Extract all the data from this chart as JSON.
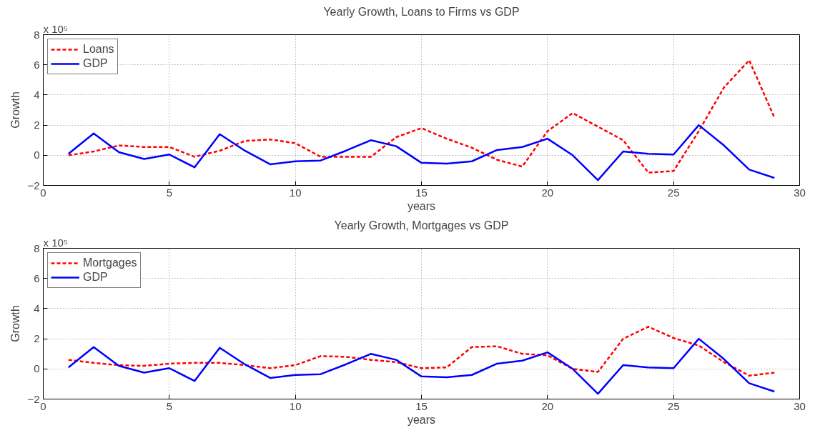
{
  "chart_data": [
    {
      "type": "line",
      "title": "Yearly Growth, Loans to Firms vs GDP",
      "xlabel": "years",
      "ylabel": "Growth",
      "annotations": [
        "x 10⁵"
      ],
      "x": [
        1,
        2,
        3,
        4,
        5,
        6,
        7,
        8,
        9,
        10,
        11,
        12,
        13,
        14,
        15,
        16,
        17,
        18,
        19,
        20,
        21,
        22,
        23,
        24,
        25,
        26,
        27,
        28,
        29
      ],
      "series": [
        {
          "name": "Loans",
          "color": "#ff0000",
          "line_style": "dashed",
          "values": [
            0,
            0.25,
            0.65,
            0.55,
            0.55,
            -0.1,
            0.3,
            0.95,
            1.05,
            0.8,
            -0.1,
            -0.1,
            -0.1,
            1.2,
            1.8,
            1.1,
            0.5,
            -0.3,
            -0.75,
            1.6,
            2.8,
            1.9,
            1.0,
            -1.15,
            -1.05,
            1.6,
            4.5,
            6.3,
            2.5
          ]
        },
        {
          "name": "GDP",
          "color": "#0000ff",
          "line_style": "solid",
          "values": [
            0.1,
            1.45,
            0.2,
            -0.25,
            0.05,
            -0.8,
            1.4,
            0.3,
            -0.6,
            -0.4,
            -0.35,
            0.3,
            1.0,
            0.6,
            -0.5,
            -0.55,
            -0.4,
            0.35,
            0.55,
            1.1,
            0,
            -1.65,
            0.25,
            0.1,
            0.05,
            2.0,
            0.65,
            -0.95,
            -1.5
          ]
        }
      ],
      "xlim": [
        0,
        30
      ],
      "xticks": [
        0,
        5,
        10,
        15,
        20,
        25,
        30
      ],
      "ylim": [
        -2,
        8
      ],
      "yticks": [
        -2,
        0,
        2,
        4,
        6,
        8
      ],
      "grid": true,
      "legend": "top left"
    },
    {
      "type": "line",
      "title": "Yearly Growth, Mortgages vs GDP",
      "xlabel": "years",
      "ylabel": "Growth",
      "annotations": [
        "x 10⁵"
      ],
      "x": [
        1,
        2,
        3,
        4,
        5,
        6,
        7,
        8,
        9,
        10,
        11,
        12,
        13,
        14,
        15,
        16,
        17,
        18,
        19,
        20,
        21,
        22,
        23,
        24,
        25,
        26,
        27,
        28,
        29
      ],
      "series": [
        {
          "name": "Mortgages",
          "color": "#ff0000",
          "line_style": "dashed",
          "values": [
            0.6,
            0.4,
            0.25,
            0.2,
            0.35,
            0.4,
            0.4,
            0.25,
            0.05,
            0.25,
            0.85,
            0.8,
            0.6,
            0.45,
            0.05,
            0.1,
            1.45,
            1.5,
            1.0,
            0.9,
            0,
            -0.2,
            2.0,
            2.8,
            2.05,
            1.55,
            0.45,
            -0.45,
            -0.25
          ]
        },
        {
          "name": "GDP",
          "color": "#0000ff",
          "line_style": "solid",
          "values": [
            0.1,
            1.45,
            0.2,
            -0.25,
            0.05,
            -0.8,
            1.4,
            0.3,
            -0.6,
            -0.4,
            -0.35,
            0.3,
            1.0,
            0.6,
            -0.5,
            -0.55,
            -0.4,
            0.35,
            0.55,
            1.1,
            0,
            -1.65,
            0.25,
            0.1,
            0.05,
            2.0,
            0.65,
            -0.95,
            -1.5
          ]
        }
      ],
      "xlim": [
        0,
        30
      ],
      "xticks": [
        0,
        5,
        10,
        15,
        20,
        25,
        30
      ],
      "ylim": [
        -2,
        8
      ],
      "yticks": [
        -2,
        0,
        2,
        4,
        6,
        8
      ],
      "grid": true,
      "legend": "top left"
    }
  ]
}
